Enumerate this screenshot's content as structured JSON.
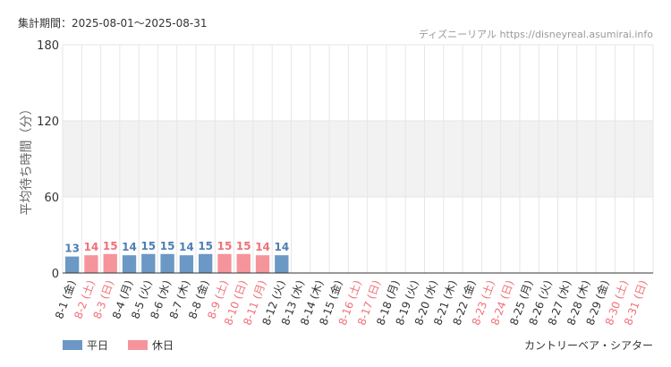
{
  "header": {
    "period": "集計期間：2025-08-01～2025-08-31",
    "source": "ディズニーリアル https://disneyreal.asumirai.info"
  },
  "footer": {
    "attraction": "カントリーベア・シアター"
  },
  "colors": {
    "weekday": "#6b98c4",
    "holiday": "#f5959b",
    "weekday_label": "#4d7fb4",
    "holiday_label": "#f07078",
    "grid": "#e6e6e6",
    "band": "#f2f2f2"
  },
  "chart_data": {
    "type": "bar",
    "ylabel": "平均待ち時間（分）",
    "ylim": [
      0,
      180
    ],
    "yticks": [
      0,
      60,
      120,
      180
    ],
    "grid": true,
    "legend_position": "bottom-left",
    "legend": [
      {
        "name": "平日",
        "kind": "weekday"
      },
      {
        "name": "休日",
        "kind": "holiday"
      }
    ],
    "categories": [
      "8-1 (金)",
      "8-2 (土)",
      "8-3 (日)",
      "8-4 (月)",
      "8-5 (火)",
      "8-6 (水)",
      "8-7 (木)",
      "8-8 (金)",
      "8-9 (土)",
      "8-10 (日)",
      "8-11 (月)",
      "8-12 (火)",
      "8-13 (水)",
      "8-14 (木)",
      "8-15 (金)",
      "8-16 (土)",
      "8-17 (日)",
      "8-18 (月)",
      "8-19 (火)",
      "8-20 (水)",
      "8-21 (木)",
      "8-22 (金)",
      "8-23 (土)",
      "8-24 (日)",
      "8-25 (月)",
      "8-26 (火)",
      "8-27 (水)",
      "8-28 (木)",
      "8-29 (金)",
      "8-30 (土)",
      "8-31 (日)"
    ],
    "holiday": [
      false,
      true,
      true,
      false,
      false,
      false,
      false,
      false,
      true,
      true,
      true,
      false,
      false,
      false,
      false,
      true,
      true,
      false,
      false,
      false,
      false,
      false,
      true,
      true,
      false,
      false,
      false,
      false,
      false,
      true,
      true
    ],
    "values": [
      13,
      14,
      15,
      14,
      15,
      15,
      14,
      15,
      15,
      15,
      14,
      14,
      0,
      0,
      0,
      0,
      0,
      0,
      0,
      0,
      0,
      0,
      0,
      0,
      0,
      0,
      0,
      0,
      0,
      0,
      0
    ]
  }
}
